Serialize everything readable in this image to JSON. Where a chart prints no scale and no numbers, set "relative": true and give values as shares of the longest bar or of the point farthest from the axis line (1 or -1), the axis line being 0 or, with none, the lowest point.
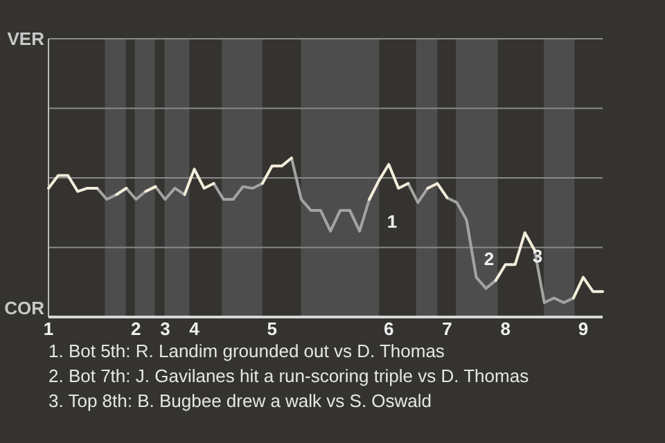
{
  "chart_data": {
    "type": "line",
    "relative": true,
    "categories": [
      "1",
      null,
      null,
      null,
      null,
      null,
      null,
      null,
      null,
      "2",
      null,
      null,
      "3",
      null,
      null,
      "4",
      null,
      null,
      null,
      null,
      null,
      null,
      null,
      "5",
      null,
      null,
      null,
      null,
      null,
      null,
      null,
      null,
      null,
      null,
      null,
      "6",
      null,
      null,
      null,
      null,
      null,
      "7",
      null,
      null,
      null,
      null,
      null,
      "8",
      null,
      null,
      null,
      null,
      null,
      null,
      null,
      "9",
      null,
      null
    ],
    "series": [
      {
        "color": "#a3a3a3",
        "values": [
          null,
          null,
          null,
          null,
          null,
          0.81,
          0.74,
          0.77,
          0.81,
          0.74,
          0.79,
          0.82,
          0.74,
          0.81,
          0.77,
          null,
          null,
          0.84,
          0.74,
          0.74,
          0.82,
          0.81,
          0.84,
          null,
          null,
          1,
          0.74,
          0.67,
          0.67,
          0.54,
          0.67,
          0.67,
          0.54,
          0.74,
          null,
          null,
          null,
          0.84,
          0.72,
          0.81,
          null,
          0.75,
          0.72,
          0.61,
          0.25,
          0.18,
          0.23,
          null,
          null,
          null,
          0.42,
          0.09,
          0.12,
          0.09,
          0.12,
          null,
          null,
          null
        ]
      },
      {
        "color": "#f3eedb",
        "values": [
          0.81,
          0.89,
          0.89,
          0.79,
          0.81,
          0.81,
          null,
          0.77,
          0.81,
          null,
          0.79,
          0.82,
          null,
          null,
          0.77,
          0.93,
          0.81,
          0.84,
          null,
          null,
          null,
          null,
          0.84,
          0.95,
          0.95,
          1,
          null,
          null,
          null,
          null,
          null,
          null,
          null,
          0.74,
          0.86,
          0.96,
          0.81,
          0.84,
          null,
          0.81,
          0.84,
          0.75,
          null,
          null,
          null,
          null,
          0.23,
          0.33,
          0.33,
          0.53,
          0.42,
          null,
          null,
          null,
          0.12,
          0.25,
          0.16,
          0.16
        ]
      }
    ],
    "marker": "none",
    "line_style": "solid",
    "ref_lines": [
      {
        "axis": "y",
        "value": 0.4375,
        "color": "#8a8a8a"
      },
      {
        "axis": "y",
        "value": 0.875,
        "color": "#8a8a8a"
      }
    ],
    "annotations": [
      "VER",
      "COR",
      "1",
      "2",
      "3",
      "1. Bot 5th: R. Landim grounded out vs D. Thomas",
      "2. Bot 7th: J. Gavilanes hit a run-scoring triple vs D. Thomas",
      "3. Top 8th: B. Bugbee drew a walk vs S. Oswald"
    ]
  }
}
